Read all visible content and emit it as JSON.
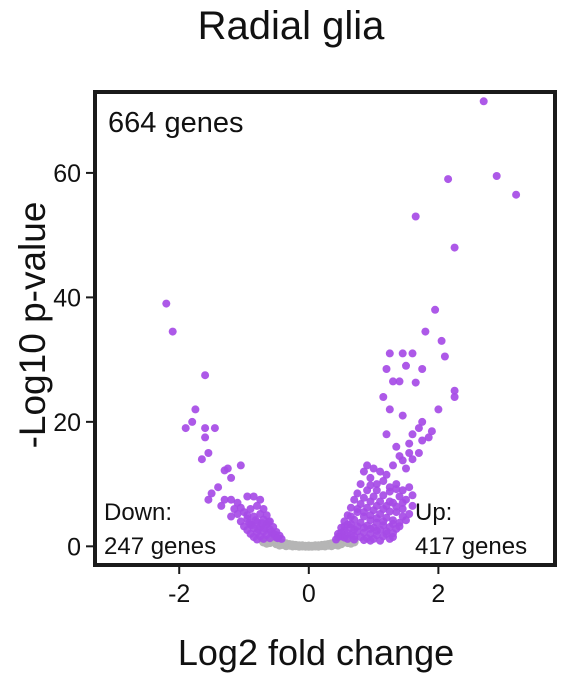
{
  "chart_data": {
    "type": "scatter",
    "title": "Radial glia",
    "xlabel": "Log2 fold change",
    "ylabel": "-Log10 p-value",
    "xlim": [
      -3.3,
      3.8
    ],
    "ylim": [
      -3,
      73
    ],
    "x_ticks": [
      -2,
      0,
      2
    ],
    "x_tick_labels": [
      "-2",
      "0",
      "2"
    ],
    "y_ticks": [
      0,
      20,
      40,
      60
    ],
    "y_tick_labels": [
      "0",
      "20",
      "40",
      "60"
    ],
    "grid": false,
    "annotations": {
      "total": "664 genes",
      "down_line1": "Down:",
      "down_line2": "247 genes",
      "up_line1": "Up:",
      "up_line2": "417 genes"
    },
    "colors": {
      "significant": "#a64be6",
      "not_significant": "#b5b5b5"
    },
    "series": [
      {
        "group": "up",
        "points": [
          [
            2.7,
            71.5
          ],
          [
            2.9,
            59.5
          ],
          [
            3.2,
            56.5
          ],
          [
            2.15,
            59
          ],
          [
            1.65,
            53
          ],
          [
            2.25,
            48
          ],
          [
            1.95,
            38
          ],
          [
            2.05,
            33
          ],
          [
            2.1,
            30.5
          ],
          [
            1.8,
            34.5
          ],
          [
            1.6,
            31
          ],
          [
            1.45,
            31
          ],
          [
            1.25,
            31
          ],
          [
            1.5,
            29
          ],
          [
            1.75,
            28.5
          ],
          [
            1.2,
            28.5
          ],
          [
            1.4,
            26.5
          ],
          [
            1.65,
            26.3
          ],
          [
            1.3,
            26.5
          ],
          [
            2.25,
            25
          ],
          [
            2.25,
            24
          ],
          [
            2.0,
            22
          ],
          [
            1.75,
            20
          ],
          [
            1.7,
            19
          ],
          [
            1.25,
            22
          ],
          [
            1.15,
            24
          ],
          [
            1.45,
            21
          ],
          [
            1.9,
            18.5
          ],
          [
            1.6,
            18
          ],
          [
            1.2,
            18
          ],
          [
            1.55,
            16.5
          ],
          [
            1.35,
            16
          ],
          [
            1.75,
            17
          ],
          [
            1.85,
            17.5
          ],
          [
            1.55,
            15
          ],
          [
            1.6,
            14
          ],
          [
            1.5,
            12.5
          ],
          [
            1.4,
            14.5
          ],
          [
            1.45,
            13.8
          ],
          [
            1.7,
            15
          ],
          [
            0.85,
            12
          ],
          [
            0.95,
            11
          ],
          [
            0.9,
            13
          ],
          [
            1.0,
            12.5
          ],
          [
            1.1,
            12
          ],
          [
            1.2,
            11.5
          ],
          [
            1.3,
            13
          ],
          [
            1.05,
            10
          ],
          [
            1.15,
            10.5
          ],
          [
            1.25,
            9.5
          ],
          [
            1.35,
            10
          ],
          [
            1.45,
            9
          ],
          [
            1.55,
            9.5
          ],
          [
            1.6,
            8.2
          ],
          [
            1.5,
            7.5
          ],
          [
            1.4,
            8
          ],
          [
            1.3,
            7
          ],
          [
            1.6,
            6.5
          ],
          [
            1.45,
            6
          ],
          [
            1.55,
            5.2
          ],
          [
            1.35,
            5.5
          ],
          [
            1.2,
            6.5
          ],
          [
            1.1,
            7.2
          ],
          [
            1.0,
            8
          ],
          [
            0.9,
            9
          ],
          [
            0.8,
            10
          ],
          [
            0.75,
            8.5
          ],
          [
            0.7,
            7.5
          ],
          [
            0.8,
            6.8
          ],
          [
            0.9,
            6.2
          ],
          [
            1.0,
            5.8
          ],
          [
            1.1,
            5.2
          ],
          [
            1.2,
            4.6
          ],
          [
            1.3,
            4.2
          ],
          [
            1.4,
            3.8
          ],
          [
            0.65,
            6.2
          ],
          [
            0.75,
            5.5
          ],
          [
            0.85,
            4.8
          ],
          [
            0.95,
            4.2
          ],
          [
            1.05,
            3.8
          ],
          [
            1.15,
            3.4
          ],
          [
            1.25,
            3.1
          ],
          [
            1.35,
            2.8
          ],
          [
            0.6,
            5
          ],
          [
            0.7,
            4.3
          ],
          [
            0.8,
            3.8
          ],
          [
            0.9,
            3.3
          ],
          [
            1.0,
            3.0
          ],
          [
            1.1,
            2.7
          ],
          [
            1.2,
            2.4
          ],
          [
            1.3,
            2.1
          ],
          [
            0.55,
            4
          ],
          [
            0.6,
            3.5
          ],
          [
            0.65,
            3.0
          ],
          [
            0.7,
            2.7
          ],
          [
            0.75,
            2.4
          ],
          [
            0.85,
            2.2
          ],
          [
            0.95,
            2.0
          ],
          [
            1.05,
            1.8
          ],
          [
            1.15,
            1.6
          ],
          [
            0.5,
            3
          ],
          [
            0.55,
            2.5
          ],
          [
            0.6,
            2.1
          ],
          [
            0.65,
            1.8
          ],
          [
            0.7,
            1.6
          ],
          [
            0.8,
            1.5
          ],
          [
            0.9,
            1.3
          ],
          [
            1.0,
            1.2
          ],
          [
            0.45,
            2
          ],
          [
            0.5,
            1.6
          ],
          [
            0.55,
            1.4
          ],
          [
            0.6,
            1.2
          ],
          [
            0.7,
            1.1
          ],
          [
            0.85,
            1.0
          ],
          [
            0.95,
            0.9
          ],
          [
            1.1,
            0.9
          ],
          [
            1.25,
            1.2
          ],
          [
            1.3,
            1.5
          ],
          [
            1.2,
            2.0
          ],
          [
            1.05,
            2.5
          ],
          [
            0.95,
            2.8
          ],
          [
            0.85,
            3.0
          ],
          [
            0.75,
            3.2
          ],
          [
            0.65,
            3.6
          ],
          [
            0.55,
            3.2
          ],
          [
            0.5,
            2.2
          ],
          [
            0.45,
            1.5
          ],
          [
            0.42,
            1.1
          ],
          [
            1.4,
            3.2
          ],
          [
            1.5,
            4.2
          ],
          [
            1.45,
            4.8
          ],
          [
            1.3,
            3.6
          ],
          [
            1.15,
            4.0
          ],
          [
            1.05,
            4.5
          ],
          [
            0.95,
            5.0
          ],
          [
            0.85,
            5.5
          ],
          [
            0.75,
            6.0
          ],
          [
            0.65,
            4.8
          ],
          [
            1.05,
            6.5
          ],
          [
            0.95,
            7.2
          ],
          [
            0.85,
            7.8
          ],
          [
            1.15,
            8.2
          ],
          [
            1.25,
            8.8
          ],
          [
            1.35,
            9.2
          ],
          [
            1.25,
            5.6
          ],
          [
            1.35,
            6.4
          ],
          [
            1.45,
            7.0
          ],
          [
            1.05,
            9.0
          ],
          [
            0.95,
            9.8
          ],
          [
            1.15,
            6.0
          ],
          [
            1.25,
            7.2
          ]
        ]
      },
      {
        "group": "down",
        "points": [
          [
            -2.2,
            39
          ],
          [
            -2.1,
            34.5
          ],
          [
            -1.6,
            27.5
          ],
          [
            -1.75,
            22
          ],
          [
            -1.8,
            20
          ],
          [
            -1.9,
            19
          ],
          [
            -1.6,
            19
          ],
          [
            -1.45,
            19
          ],
          [
            -1.6,
            17.5
          ],
          [
            -1.55,
            15
          ],
          [
            -1.65,
            14
          ],
          [
            -1.25,
            12.5
          ],
          [
            -1.3,
            12.2
          ],
          [
            -1.05,
            13
          ],
          [
            -1.2,
            11
          ],
          [
            -1.4,
            9.5
          ],
          [
            -1.5,
            8.5
          ],
          [
            -1.55,
            7.5
          ],
          [
            -1.3,
            7.5
          ],
          [
            -1.2,
            7.5
          ],
          [
            -1.1,
            7
          ],
          [
            -1.35,
            6.5
          ],
          [
            -0.95,
            8
          ],
          [
            -0.85,
            8
          ],
          [
            -0.75,
            7.5
          ],
          [
            -0.8,
            6.5
          ],
          [
            -0.9,
            6
          ],
          [
            -1.0,
            5.5
          ],
          [
            -1.1,
            5.2
          ],
          [
            -1.2,
            4.8
          ],
          [
            -0.7,
            6
          ],
          [
            -0.75,
            5.2
          ],
          [
            -0.85,
            4.8
          ],
          [
            -0.95,
            4.4
          ],
          [
            -1.05,
            4.0
          ],
          [
            -0.65,
            5.0
          ],
          [
            -0.7,
            4.3
          ],
          [
            -0.8,
            3.9
          ],
          [
            -0.9,
            3.5
          ],
          [
            -1.0,
            3.2
          ],
          [
            -0.6,
            4.0
          ],
          [
            -0.65,
            3.5
          ],
          [
            -0.75,
            3.2
          ],
          [
            -0.85,
            2.9
          ],
          [
            -0.95,
            2.6
          ],
          [
            -0.55,
            3.1
          ],
          [
            -0.6,
            2.7
          ],
          [
            -0.7,
            2.4
          ],
          [
            -0.8,
            2.2
          ],
          [
            -0.9,
            2.0
          ],
          [
            -0.5,
            2.3
          ],
          [
            -0.55,
            2.0
          ],
          [
            -0.65,
            1.8
          ],
          [
            -0.75,
            1.6
          ],
          [
            -0.85,
            1.5
          ],
          [
            -0.45,
            1.7
          ],
          [
            -0.5,
            1.4
          ],
          [
            -0.6,
            1.3
          ],
          [
            -0.7,
            1.2
          ],
          [
            -0.8,
            1.1
          ],
          [
            -0.42,
            1.2
          ],
          [
            -1.05,
            6.2
          ],
          [
            -1.15,
            6.0
          ],
          [
            -0.95,
            5.0
          ],
          [
            -0.88,
            3.4
          ],
          [
            -0.78,
            2.7
          ],
          [
            -0.68,
            2.9
          ],
          [
            -0.58,
            2.3
          ],
          [
            -0.52,
            1.9
          ],
          [
            -0.48,
            1.3
          ],
          [
            -0.62,
            3.9
          ],
          [
            -0.72,
            3.7
          ],
          [
            -0.82,
            4.2
          ],
          [
            -0.92,
            3.8
          ]
        ]
      },
      {
        "group": "not_significant",
        "points": [
          [
            -0.55,
            0.9
          ],
          [
            -0.5,
            0.75
          ],
          [
            -0.45,
            0.6
          ],
          [
            -0.4,
            0.5
          ],
          [
            -0.35,
            0.4
          ],
          [
            -0.3,
            0.3
          ],
          [
            -0.25,
            0.22
          ],
          [
            -0.2,
            0.15
          ],
          [
            -0.15,
            0.1
          ],
          [
            -0.1,
            0.05
          ],
          [
            -0.05,
            0.02
          ],
          [
            0,
            0
          ],
          [
            0.05,
            0.02
          ],
          [
            0.1,
            0.05
          ],
          [
            0.15,
            0.1
          ],
          [
            0.2,
            0.15
          ],
          [
            0.25,
            0.22
          ],
          [
            0.3,
            0.3
          ],
          [
            0.35,
            0.4
          ],
          [
            0.4,
            0.5
          ],
          [
            0.45,
            0.6
          ],
          [
            0.5,
            0.75
          ],
          [
            0.55,
            0.9
          ],
          [
            -0.6,
            0.6
          ],
          [
            -0.5,
            0.4
          ],
          [
            -0.4,
            0.3
          ],
          [
            -0.3,
            0.18
          ],
          [
            -0.2,
            0.1
          ],
          [
            -0.1,
            0.08
          ],
          [
            0,
            0.05
          ],
          [
            0.1,
            0.08
          ],
          [
            0.2,
            0.1
          ],
          [
            0.3,
            0.18
          ],
          [
            0.4,
            0.3
          ],
          [
            0.5,
            0.4
          ],
          [
            0.6,
            0.6
          ],
          [
            -0.7,
            0.7
          ],
          [
            0.7,
            0.7
          ],
          [
            -0.65,
            0.5
          ],
          [
            0.65,
            0.5
          ],
          [
            -0.35,
            0.1
          ],
          [
            0.35,
            0.1
          ],
          [
            -0.45,
            0.2
          ],
          [
            0.45,
            0.2
          ],
          [
            -0.25,
            0.05
          ],
          [
            0.25,
            0.05
          ],
          [
            -0.15,
            0.02
          ],
          [
            0.15,
            0.02
          ]
        ]
      }
    ]
  }
}
